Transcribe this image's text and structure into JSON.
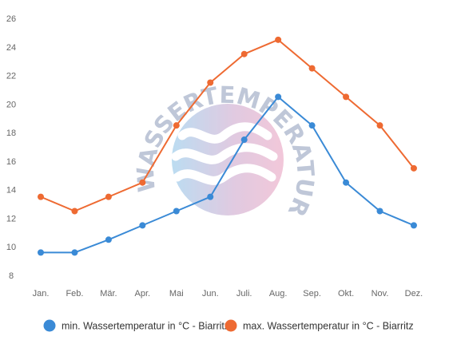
{
  "chart_data": {
    "type": "line",
    "title": "",
    "xlabel": "",
    "ylabel": "",
    "categories": [
      "Jan.",
      "Feb.",
      "Mär.",
      "Apr.",
      "Mai",
      "Jun.",
      "Juli.",
      "Aug.",
      "Sep.",
      "Okt.",
      "Nov.",
      "Dez."
    ],
    "ylim": [
      8,
      26
    ],
    "yticks": [
      8,
      10,
      12,
      14,
      16,
      18,
      20,
      22,
      24,
      26
    ],
    "grid": false,
    "legend_position": "bottom",
    "series": [
      {
        "name": "min. Wassertemperatur in °C - Biarritz",
        "color": "#3a8ad6",
        "values": [
          9.6,
          9.6,
          10.5,
          11.5,
          12.5,
          13.5,
          17.5,
          20.5,
          18.5,
          14.5,
          12.5,
          11.5
        ]
      },
      {
        "name": "max. Wassertemperatur in °C - Biarritz",
        "color": "#ee6a32",
        "values": [
          13.5,
          12.5,
          13.5,
          14.5,
          18.5,
          21.5,
          23.5,
          24.5,
          22.5,
          20.5,
          18.5,
          15.5
        ]
      }
    ]
  },
  "watermark": {
    "text": "WASSERTEMPERATUR.ORG",
    "colors": [
      "#a9d3ee",
      "#d8bcd9",
      "#efb8cf"
    ]
  }
}
